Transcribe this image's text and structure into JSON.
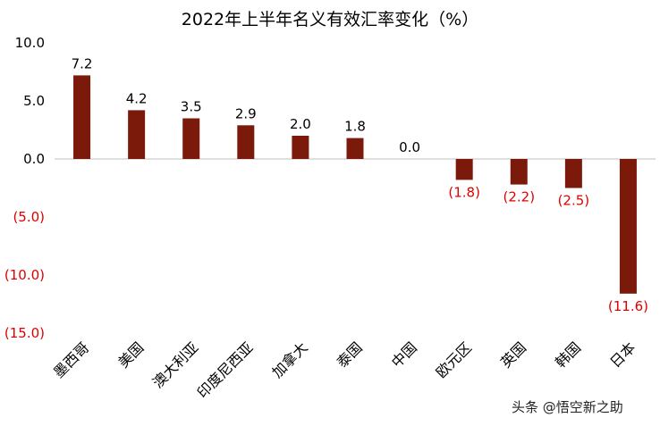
{
  "chart_data": {
    "type": "bar",
    "title": "2022年上半年名义有效汇率变化（%）",
    "xlabel": "",
    "ylabel": "",
    "categories": [
      "墨西哥",
      "美国",
      "澳大利亚",
      "印度尼西亚",
      "加拿大",
      "泰国",
      "中国",
      "欧元区",
      "英国",
      "韩国",
      "日本"
    ],
    "values": [
      7.2,
      4.2,
      3.5,
      2.9,
      2.0,
      1.8,
      0.0,
      -1.8,
      -2.2,
      -2.5,
      -11.6
    ],
    "data_labels": [
      "7.2",
      "4.2",
      "3.5",
      "2.9",
      "2.0",
      "1.8",
      "0.0",
      "(1.8)",
      "(2.2)",
      "(2.5)",
      "(11.6)"
    ],
    "yticks": [
      10,
      5,
      0,
      -5,
      -10,
      -15
    ],
    "ytick_labels": [
      "10.0",
      "5.0",
      "0.0",
      "(5.0)",
      "(10.0)",
      "(15.0)"
    ],
    "ylim": [
      -15,
      10
    ],
    "grid": false,
    "legend": "none",
    "colors": {
      "bar": "#7B1A0A",
      "positive_text": "#000000",
      "negative_text": "#E00000",
      "axis": "#BFBFBF"
    }
  },
  "watermark": "头条 @悟空新之助"
}
